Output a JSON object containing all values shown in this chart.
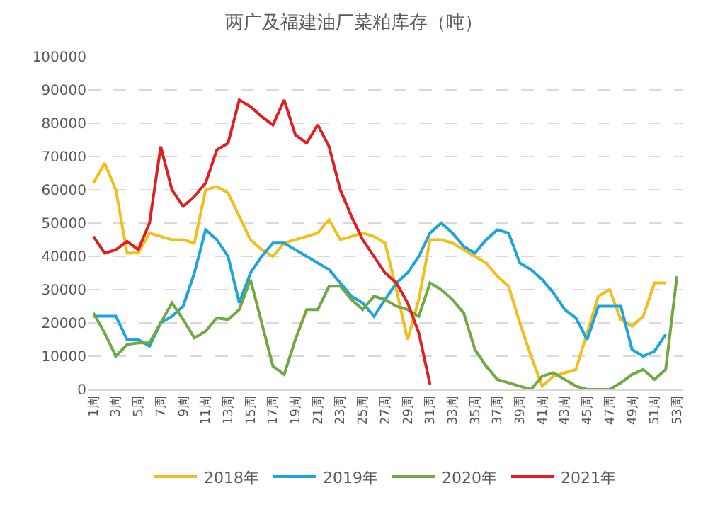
{
  "chart_data": {
    "type": "line",
    "title": "两广及福建油厂菜粕库存（吨）",
    "categories": [
      "1周",
      null,
      "3周",
      null,
      "5周",
      null,
      "7周",
      null,
      "9周",
      null,
      "11周",
      null,
      "13周",
      null,
      "15周",
      null,
      "17周",
      null,
      "19周",
      null,
      "21周",
      null,
      "23周",
      null,
      "25周",
      null,
      "27周",
      null,
      "29周",
      null,
      "31周",
      null,
      "33周",
      null,
      "35周",
      null,
      "37周",
      null,
      "39周",
      null,
      "41周",
      null,
      "43周",
      null,
      "45周",
      null,
      "47周",
      null,
      "49周",
      null,
      "51周",
      null,
      "53周"
    ],
    "series": [
      {
        "name": "2018年",
        "color": "#f2be1c",
        "values": [
          62000,
          68000,
          60000,
          41000,
          41000,
          47000,
          46000,
          45000,
          45000,
          44000,
          60000,
          61000,
          59000,
          52000,
          45000,
          42000,
          40000,
          44000,
          45000,
          46000,
          47000,
          51000,
          45000,
          46000,
          47000,
          46000,
          44000,
          30000,
          15000,
          27000,
          45000,
          45000,
          44000,
          42000,
          40000,
          38000,
          34000,
          31000,
          20000,
          10000,
          1000,
          4000,
          5000,
          6000,
          17000,
          28000,
          30000,
          21000,
          19000,
          22000,
          32000,
          32000,
          null
        ]
      },
      {
        "name": "2019年",
        "color": "#1ea3dc",
        "values": [
          22000,
          22000,
          22000,
          15000,
          15000,
          13000,
          20000,
          22000,
          25000,
          35000,
          48000,
          45000,
          40000,
          26000,
          35000,
          40000,
          44000,
          44000,
          42000,
          40000,
          38000,
          36000,
          32000,
          28000,
          26000,
          22000,
          27000,
          32000,
          35000,
          40000,
          47000,
          50000,
          47000,
          43000,
          41000,
          45000,
          48000,
          47000,
          38000,
          36000,
          33000,
          29000,
          24000,
          21500,
          15000,
          25000,
          25000,
          25000,
          12000,
          10000,
          11500,
          16500,
          null
        ]
      },
      {
        "name": "2020年",
        "color": "#70a844",
        "values": [
          23000,
          17000,
          10000,
          13500,
          14000,
          14000,
          20000,
          26000,
          21000,
          15500,
          17500,
          21500,
          21000,
          24000,
          33000,
          20000,
          7000,
          4500,
          15000,
          24000,
          24000,
          31000,
          31000,
          27000,
          24000,
          28000,
          27000,
          25000,
          24000,
          22000,
          32000,
          30000,
          27000,
          23000,
          12000,
          7000,
          3000,
          2000,
          1000,
          0,
          4000,
          5000,
          3000,
          1000,
          0,
          0,
          0,
          2000,
          4500,
          6000,
          3000,
          6000,
          34000
        ]
      },
      {
        "name": "2021年",
        "color": "#e02020",
        "values": [
          46000,
          41000,
          42000,
          44500,
          42000,
          50000,
          73000,
          60000,
          55000,
          58000,
          62000,
          72000,
          74000,
          87000,
          85000,
          82000,
          79500,
          87000,
          76500,
          74000,
          79500,
          73000,
          60000,
          52000,
          45000,
          40000,
          35000,
          32000,
          26000,
          17000,
          1500,
          null,
          null,
          null,
          null,
          null,
          null,
          null,
          null,
          null,
          null,
          null,
          null,
          null,
          null,
          null,
          null,
          null,
          null,
          null,
          null,
          null,
          null
        ]
      }
    ],
    "ylim": [
      0,
      100000
    ],
    "yticks": [
      0,
      10000,
      20000,
      30000,
      40000,
      50000,
      60000,
      70000,
      80000,
      90000,
      100000
    ],
    "grid": "y",
    "legend": "bottom",
    "marker": "none",
    "line_style": "solid"
  }
}
